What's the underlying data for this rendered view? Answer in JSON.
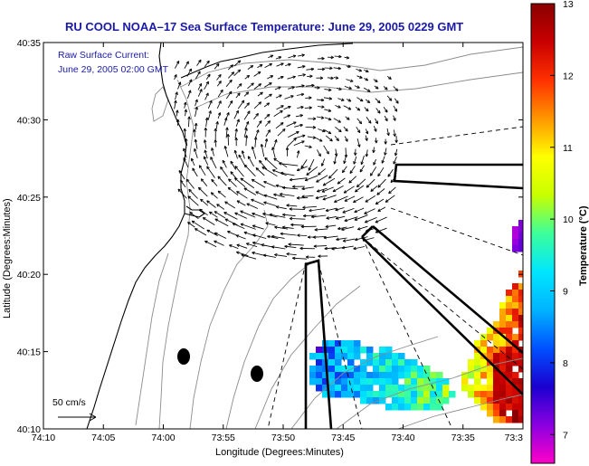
{
  "chart_data": {
    "type": "map",
    "title": "RU COOL  NOAA–17  Sea Surface Temperature:  June 29, 2005 0229 GMT",
    "annotation_lines": [
      "Raw Surface Current:",
      "June 29, 2005 02:00 GMT"
    ],
    "scale_label": "50 cm/s",
    "xlabel": "Longitude (Degrees:Minutes)",
    "ylabel": "Latitude (Degrees:Minutes)",
    "x_ticks": [
      "74:10",
      "74:05",
      "74:00",
      "73:55",
      "73:50",
      "73:45",
      "73:40",
      "73:35",
      "73:3"
    ],
    "y_ticks": [
      "40:35",
      "40:30",
      "40:25",
      "40:20",
      "40:15",
      "40:10"
    ],
    "xlim_minutes_west": [
      10,
      30
    ],
    "ylim_minutes_north": [
      10,
      35
    ],
    "colorbar": {
      "label": "Temperature (°C)",
      "ticks": [
        "13",
        "12",
        "11",
        "10",
        "9",
        "8",
        "7"
      ],
      "range": [
        6.6,
        13
      ],
      "colors": [
        "#ff00c8",
        "#8a00e0",
        "#1a00d0",
        "#0050ff",
        "#00b4ff",
        "#00e6ff",
        "#3cff9a",
        "#c8ff00",
        "#ffff00",
        "#ff9600",
        "#ff3000",
        "#c80000",
        "#8a0000"
      ]
    },
    "palette": {
      "title": "#1a1aa8",
      "arrow": "#000000",
      "coast": "#000000",
      "bathymetry": "#8c8c8c"
    }
  }
}
